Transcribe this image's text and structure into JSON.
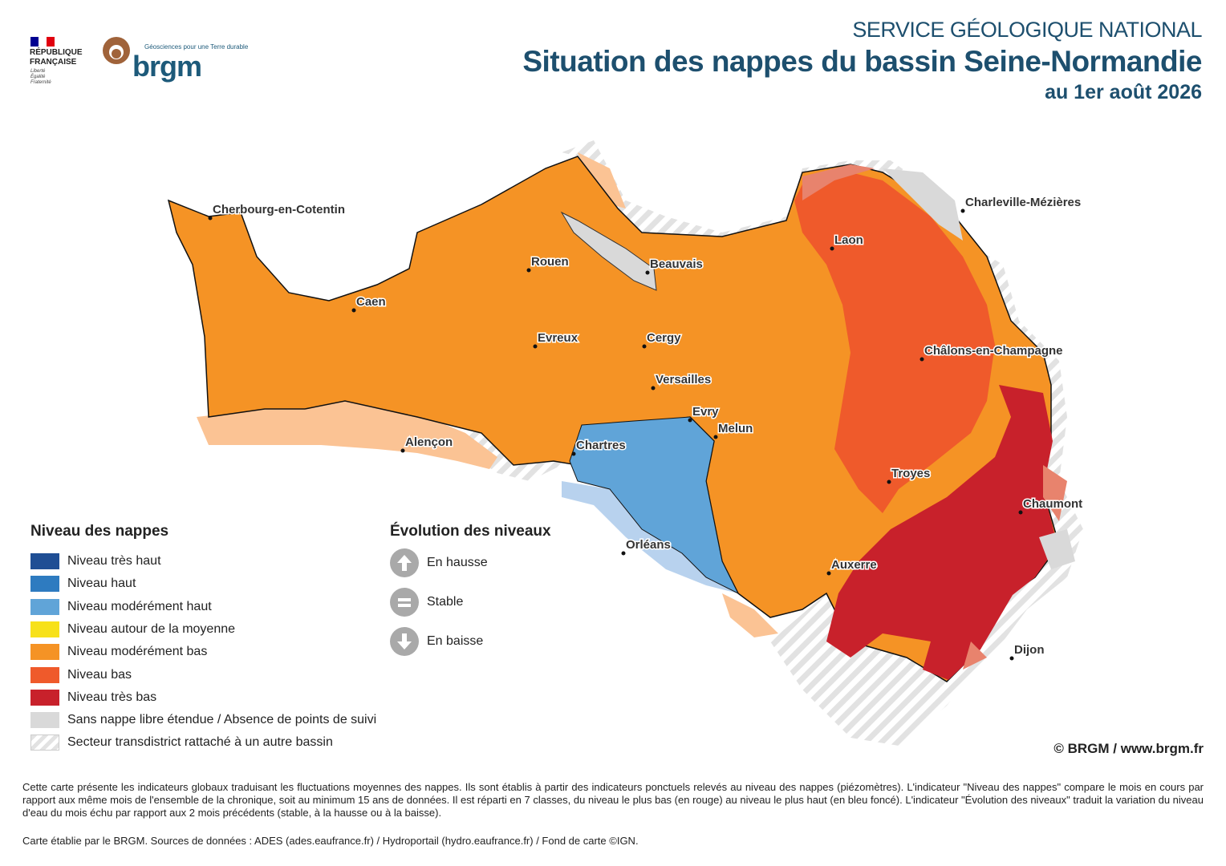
{
  "header": {
    "republique": "RÉPUBLIQUE FRANÇAISE",
    "devise": "Liberté Égalité Fraternité",
    "brgm_tagline": "Géosciences pour une Terre durable",
    "brgm": "brgm",
    "service": "SERVICE GÉOLOGIQUE NATIONAL",
    "title": "Situation des nappes du bassin Seine-Normandie",
    "date": "au 1er août 2026"
  },
  "cities": [
    "Cherbourg-en-Cotentin",
    "Caen",
    "Rouen",
    "Beauvais",
    "Evreux",
    "Cergy",
    "Versailles",
    "Evry",
    "Melun",
    "Chartres",
    "Alençon",
    "Orléans",
    "Auxerre",
    "Troyes",
    "Chaumont",
    "Dijon",
    "Laon",
    "Charleville-Mézières",
    "Châlons-en-Champagne"
  ],
  "legend_niveau": {
    "title": "Niveau des nappes",
    "items": [
      {
        "label": "Niveau très haut",
        "color": "#1f4e94"
      },
      {
        "label": "Niveau haut",
        "color": "#2e7bc0"
      },
      {
        "label": "Niveau modérément haut",
        "color": "#60a4d8"
      },
      {
        "label": "Niveau autour de la moyenne",
        "color": "#f7e11a"
      },
      {
        "label": "Niveau modérément bas",
        "color": "#f59325"
      },
      {
        "label": "Niveau bas",
        "color": "#ef5a2b"
      },
      {
        "label": "Niveau très bas",
        "color": "#c8212b"
      },
      {
        "label": "Sans nappe libre étendue / Absence de points de suivi",
        "color": "#d9d9d9"
      },
      {
        "label": "Secteur transdistrict rattaché à un autre bassin",
        "color": "#e2e2e2",
        "pattern": "hatch"
      }
    ]
  },
  "legend_evolution": {
    "title": "Évolution des niveaux",
    "items": [
      "En hausse",
      "Stable",
      "En baisse"
    ]
  },
  "copyright": "© BRGM / www.brgm.fr",
  "notes": [
    "Cette carte présente les indicateurs globaux traduisant les fluctuations moyennes des nappes. Ils sont établis à partir des indicateurs ponctuels relevés au niveau des nappes (piézomètres). L'indicateur \"Niveau des nappes\" compare le mois en cours par rapport aux même mois de l'ensemble de la chronique, soit au minimum 15 ans de données. Il est réparti en 7 classes, du niveau le plus bas (en rouge) au niveau le plus haut (en bleu foncé). L'indicateur \"Évolution des niveaux\" traduit la variation du niveau d'eau du mois échu par rapport aux 2 mois précédents (stable, à la hausse ou à la baisse).",
    "Carte établie par le BRGM. Sources de données : ADES (ades.eaufrance.fr) / Hydroportail (hydro.eaufrance.fr) / Fond de carte ©IGN."
  ]
}
